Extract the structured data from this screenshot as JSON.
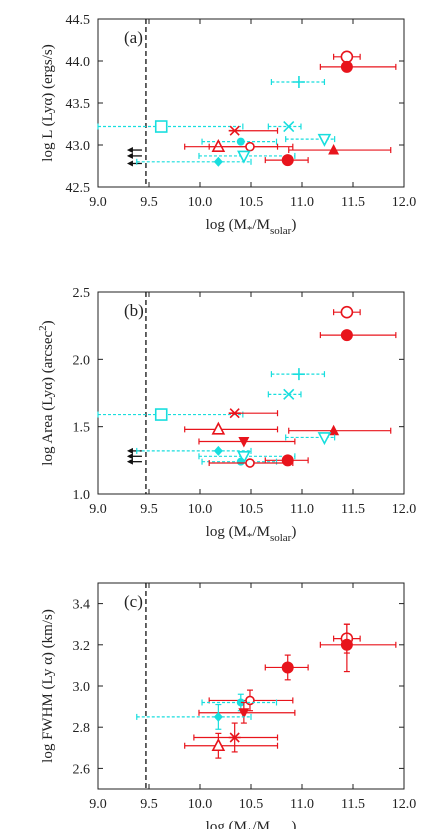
{
  "colors": {
    "red": "#e8141c",
    "cyan": "#18dede",
    "axis": "#222222"
  },
  "chart_data": [
    {
      "type": "scatter",
      "panel_label": "(a)",
      "ylabel": "log L (Lyα) (ergs/s)",
      "xlabel_main": "log (M",
      "xlabel_star": "*",
      "xlabel_mid": "/M",
      "xlabel_sub": "solar",
      "xlabel_close": ")",
      "xlim": [
        9.0,
        12.0
      ],
      "ylim": [
        42.5,
        44.5
      ],
      "xticks": [
        "9.0",
        "9.5",
        "10.0",
        "10.5",
        "11.0",
        "11.5",
        "12.0"
      ],
      "yticks": [
        "42.5",
        "43.0",
        "43.5",
        "44.0",
        "44.5"
      ],
      "vline_x": 9.47,
      "points": [
        {
          "x": 11.44,
          "y": 44.05,
          "xerr": [
            0.13,
            0.13
          ],
          "yerr": [
            0,
            0
          ],
          "marker": "open-circle",
          "color": "red"
        },
        {
          "x": 11.44,
          "y": 43.93,
          "xerr": [
            0.26,
            0.48
          ],
          "yerr": [
            0,
            0
          ],
          "marker": "filled-circle",
          "color": "red"
        },
        {
          "x": 10.97,
          "y": 43.75,
          "xerr": [
            0.27,
            0.25
          ],
          "yerr": [
            0,
            0
          ],
          "marker": "plus",
          "color": "cyan"
        },
        {
          "x": 9.62,
          "y": 43.22,
          "xerr": [
            0.62,
            0.8
          ],
          "yerr": [
            0,
            0
          ],
          "marker": "open-square",
          "color": "cyan"
        },
        {
          "x": 10.87,
          "y": 43.22,
          "xerr": [
            0.2,
            0.12
          ],
          "yerr": [
            0,
            0
          ],
          "marker": "cross-x",
          "color": "cyan"
        },
        {
          "x": 10.34,
          "y": 43.17,
          "xerr": [
            0.0,
            0.42
          ],
          "yerr": [
            0,
            0
          ],
          "marker": "asterisk",
          "color": "red"
        },
        {
          "x": 11.22,
          "y": 43.07,
          "xerr": [
            0.38,
            0.1
          ],
          "yerr": [
            0,
            0
          ],
          "marker": "open-tri-down",
          "color": "cyan"
        },
        {
          "x": 10.4,
          "y": 43.04,
          "xerr": [
            0.38,
            0.35
          ],
          "yerr": [
            0,
            0
          ],
          "marker": "filled-circle-small",
          "color": "cyan"
        },
        {
          "x": 10.18,
          "y": 42.98,
          "xerr": [
            0.33,
            0.58
          ],
          "yerr": [
            0,
            0
          ],
          "marker": "open-triangle",
          "color": "red"
        },
        {
          "x": 10.49,
          "y": 42.98,
          "xerr": [
            0.4,
            0.42
          ],
          "yerr": [
            0,
            0
          ],
          "marker": "open-circle-small",
          "color": "red"
        },
        {
          "x": 11.31,
          "y": 42.94,
          "xerr": [
            0.44,
            0.56
          ],
          "yerr": [
            0,
            0
          ],
          "marker": "filled-triangle",
          "color": "red"
        },
        {
          "x": 10.43,
          "y": 42.87,
          "xerr": [
            0.44,
            0.5
          ],
          "yerr": [
            0,
            0
          ],
          "marker": "open-tri-down",
          "color": "cyan"
        },
        {
          "x": 10.86,
          "y": 42.82,
          "xerr": [
            0.22,
            0.2
          ],
          "yerr": [
            0,
            0
          ],
          "marker": "filled-circle",
          "color": "red"
        },
        {
          "x": 10.18,
          "y": 42.8,
          "xerr": [
            0.8,
            0.32
          ],
          "yerr": [
            0,
            0
          ],
          "marker": "filled-diamond",
          "color": "cyan"
        }
      ],
      "arrows": [
        {
          "y": 42.94
        },
        {
          "y": 42.87
        },
        {
          "y": 42.78
        }
      ]
    },
    {
      "type": "scatter",
      "panel_label": "(b)",
      "ylabel_main": "log Area (Lyα) (arcsec",
      "ylabel_sup": "2",
      "ylabel_close": ")",
      "xlabel_main": "log (M",
      "xlabel_star": "*",
      "xlabel_mid": "/M",
      "xlabel_sub": "solar",
      "xlabel_close": ")",
      "xlim": [
        9.0,
        12.0
      ],
      "ylim": [
        1.0,
        2.5
      ],
      "xticks": [
        "9.0",
        "9.5",
        "10.0",
        "10.5",
        "11.0",
        "11.5",
        "12.0"
      ],
      "yticks": [
        "1.0",
        "1.5",
        "2.0",
        "2.5"
      ],
      "vline_x": 9.47,
      "points": [
        {
          "x": 11.44,
          "y": 2.35,
          "xerr": [
            0.13,
            0.13
          ],
          "yerr": [
            0,
            0
          ],
          "marker": "open-circle",
          "color": "red"
        },
        {
          "x": 11.44,
          "y": 2.18,
          "xerr": [
            0.26,
            0.48
          ],
          "yerr": [
            0,
            0
          ],
          "marker": "filled-circle",
          "color": "red"
        },
        {
          "x": 10.97,
          "y": 1.89,
          "xerr": [
            0.27,
            0.25
          ],
          "yerr": [
            0,
            0
          ],
          "marker": "plus",
          "color": "cyan"
        },
        {
          "x": 10.87,
          "y": 1.74,
          "xerr": [
            0.2,
            0.12
          ],
          "yerr": [
            0,
            0
          ],
          "marker": "cross-x",
          "color": "cyan"
        },
        {
          "x": 9.62,
          "y": 1.59,
          "xerr": [
            0.62,
            0.8
          ],
          "yerr": [
            0,
            0
          ],
          "marker": "open-square",
          "color": "cyan"
        },
        {
          "x": 10.34,
          "y": 1.6,
          "xerr": [
            0.0,
            0.42
          ],
          "yerr": [
            0,
            0
          ],
          "marker": "asterisk",
          "color": "red"
        },
        {
          "x": 10.18,
          "y": 1.48,
          "xerr": [
            0.33,
            0.58
          ],
          "yerr": [
            0,
            0
          ],
          "marker": "open-triangle",
          "color": "red"
        },
        {
          "x": 11.31,
          "y": 1.47,
          "xerr": [
            0.44,
            0.56
          ],
          "yerr": [
            0,
            0
          ],
          "marker": "filled-triangle",
          "color": "red"
        },
        {
          "x": 11.22,
          "y": 1.42,
          "xerr": [
            0.38,
            0.1
          ],
          "yerr": [
            0,
            0
          ],
          "marker": "open-tri-down",
          "color": "cyan"
        },
        {
          "x": 10.43,
          "y": 1.39,
          "xerr": [
            0.44,
            0.5
          ],
          "yerr": [
            0,
            0
          ],
          "marker": "filled-tri-down",
          "color": "red"
        },
        {
          "x": 10.18,
          "y": 1.32,
          "xerr": [
            0.8,
            0.32
          ],
          "yerr": [
            0,
            0
          ],
          "marker": "filled-diamond",
          "color": "cyan"
        },
        {
          "x": 10.43,
          "y": 1.28,
          "xerr": [
            0.44,
            0.5
          ],
          "yerr": [
            0,
            0
          ],
          "marker": "open-tri-down",
          "color": "cyan"
        },
        {
          "x": 10.86,
          "y": 1.25,
          "xerr": [
            0.22,
            0.2
          ],
          "yerr": [
            0,
            0
          ],
          "marker": "filled-circle",
          "color": "red"
        },
        {
          "x": 10.4,
          "y": 1.24,
          "xerr": [
            0.38,
            0.35
          ],
          "yerr": [
            0,
            0
          ],
          "marker": "filled-circle-small",
          "color": "cyan"
        },
        {
          "x": 10.49,
          "y": 1.23,
          "xerr": [
            0.4,
            0.42
          ],
          "yerr": [
            0,
            0
          ],
          "marker": "open-circle-small",
          "color": "red"
        }
      ],
      "arrows": [
        {
          "y": 1.32
        },
        {
          "y": 1.28
        },
        {
          "y": 1.24
        }
      ]
    },
    {
      "type": "scatter",
      "panel_label": "(c)",
      "ylabel": "log FWHM (Ly α) (km/s)",
      "xlabel_main": "log (M",
      "xlabel_star": "*",
      "xlabel_mid": "/M",
      "xlabel_sub": "solar",
      "xlabel_close": ")",
      "xlim": [
        9.0,
        12.0
      ],
      "ylim": [
        2.5,
        3.5
      ],
      "xticks": [
        "9.0",
        "9.5",
        "10.0",
        "10.5",
        "11.0",
        "11.5",
        "12.0"
      ],
      "yticks": [
        "2.6",
        "2.8",
        "3.0",
        "3.2",
        "3.4"
      ],
      "vline_x": 9.47,
      "points": [
        {
          "x": 11.44,
          "y": 3.23,
          "xerr": [
            0.13,
            0.13
          ],
          "yerr": [
            0.07,
            0.07
          ],
          "marker": "open-circle",
          "color": "red"
        },
        {
          "x": 11.44,
          "y": 3.2,
          "xerr": [
            0.26,
            0.48
          ],
          "yerr": [
            0.13,
            0.1
          ],
          "marker": "filled-circle",
          "color": "red"
        },
        {
          "x": 10.86,
          "y": 3.09,
          "xerr": [
            0.22,
            0.2
          ],
          "yerr": [
            0.06,
            0.06
          ],
          "marker": "filled-circle",
          "color": "red"
        },
        {
          "x": 10.49,
          "y": 2.93,
          "xerr": [
            0.4,
            0.42
          ],
          "yerr": [
            0.05,
            0.05
          ],
          "marker": "open-circle-small",
          "color": "red"
        },
        {
          "x": 10.4,
          "y": 2.92,
          "xerr": [
            0.38,
            0.35
          ],
          "yerr": [
            0.04,
            0.04
          ],
          "marker": "filled-circle-small",
          "color": "cyan"
        },
        {
          "x": 10.43,
          "y": 2.87,
          "xerr": [
            0.44,
            0.5
          ],
          "yerr": [
            0.05,
            0.05
          ],
          "marker": "filled-tri-down",
          "color": "red"
        },
        {
          "x": 10.18,
          "y": 2.85,
          "xerr": [
            0.8,
            0.32
          ],
          "yerr": [
            0.06,
            0.06
          ],
          "marker": "filled-diamond",
          "color": "cyan"
        },
        {
          "x": 10.34,
          "y": 2.75,
          "xerr": [
            0.4,
            0.42
          ],
          "yerr": [
            0.07,
            0.07
          ],
          "marker": "asterisk",
          "color": "red"
        },
        {
          "x": 10.18,
          "y": 2.71,
          "xerr": [
            0.33,
            0.58
          ],
          "yerr": [
            0.06,
            0.06
          ],
          "marker": "open-triangle",
          "color": "red"
        }
      ],
      "arrows": []
    }
  ]
}
